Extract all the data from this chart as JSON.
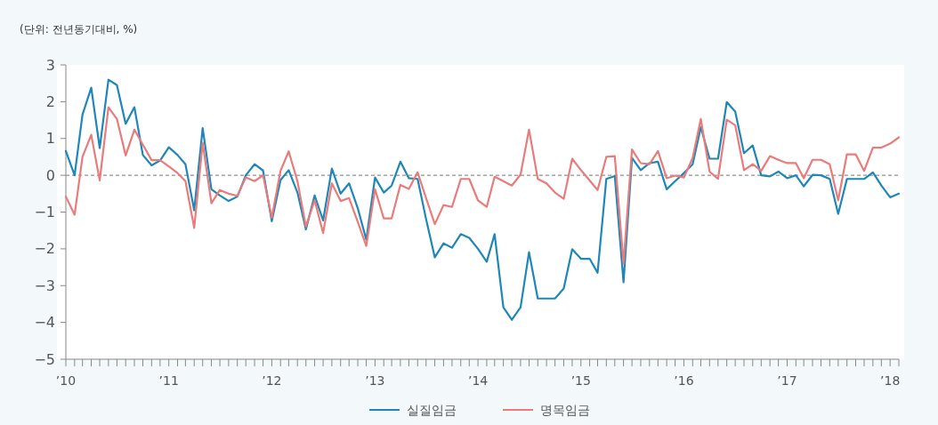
{
  "chart_data": {
    "type": "line",
    "ylabel": "(단위: 전년동기대비, %)",
    "x": [
      "2010-01",
      "2010-02",
      "2010-03",
      "2010-04",
      "2010-05",
      "2010-06",
      "2010-07",
      "2010-08",
      "2010-09",
      "2010-10",
      "2010-11",
      "2010-12",
      "2011-01",
      "2011-02",
      "2011-03",
      "2011-04",
      "2011-05",
      "2011-06",
      "2011-07",
      "2011-08",
      "2011-09",
      "2011-10",
      "2011-11",
      "2011-12",
      "2012-01",
      "2012-02",
      "2012-03",
      "2012-04",
      "2012-05",
      "2012-06",
      "2012-07",
      "2012-08",
      "2012-09",
      "2012-10",
      "2012-11",
      "2012-12",
      "2013-01",
      "2013-02",
      "2013-03",
      "2013-04",
      "2013-05",
      "2013-06",
      "2013-07",
      "2013-08",
      "2013-09",
      "2013-10",
      "2013-11",
      "2013-12",
      "2014-01",
      "2014-02",
      "2014-03",
      "2014-04",
      "2014-05",
      "2014-06",
      "2014-07",
      "2014-08",
      "2014-09",
      "2014-10",
      "2014-11",
      "2014-12",
      "2015-01",
      "2015-02",
      "2015-03",
      "2015-04",
      "2015-05",
      "2015-06",
      "2015-07",
      "2015-08",
      "2015-09",
      "2015-10",
      "2015-11",
      "2015-12",
      "2016-01",
      "2016-02",
      "2016-03",
      "2016-04",
      "2016-05",
      "2016-06",
      "2016-07",
      "2016-08",
      "2016-09",
      "2016-10",
      "2016-11",
      "2016-12",
      "2017-01",
      "2017-02",
      "2017-03",
      "2017-04",
      "2017-05",
      "2017-06",
      "2017-07",
      "2017-08",
      "2017-09",
      "2017-10",
      "2017-11",
      "2017-12",
      "2018-01",
      "2018-02"
    ],
    "series": [
      {
        "name": "실질임금",
        "color": "#1f87b8",
        "values": [
          0.66,
          0,
          1.65,
          2.38,
          0.74,
          2.6,
          2.45,
          1.4,
          1.85,
          0.55,
          0.27,
          0.4,
          0.76,
          0.55,
          0.3,
          -0.95,
          1.28,
          -0.38,
          -0.55,
          -0.7,
          -0.58,
          0,
          0.3,
          0.13,
          -1.25,
          -0.13,
          0.14,
          -0.47,
          -1.47,
          -0.55,
          -1.23,
          0.18,
          -0.5,
          -0.22,
          -0.9,
          -1.75,
          -0.06,
          -0.47,
          -0.28,
          0.37,
          -0.08,
          -0.1,
          -1.19,
          -2.23,
          -1.85,
          -1.97,
          -1.6,
          -1.7,
          -2,
          -2.35,
          -1.6,
          -3.59,
          -3.93,
          -3.59,
          -2.09,
          -3.35,
          -3.35,
          -3.35,
          -3.08,
          -2.01,
          -2.27,
          -2.27,
          -2.65,
          -0.1,
          -0.02,
          -2.91,
          0.47,
          0.14,
          0.33,
          0.37,
          -0.38,
          -0.16,
          0.06,
          0.3,
          1.31,
          0.45,
          0.45,
          1.99,
          1.73,
          0.6,
          0.81,
          0,
          -0.03,
          0.1,
          -0.08,
          0,
          -0.3,
          0.01,
          0,
          -0.1,
          -1.05,
          -0.1,
          -0.1,
          -0.1,
          0.08,
          -0.28,
          -0.6,
          -0.5
        ]
      },
      {
        "name": "명목임금",
        "color": "#e97b7b",
        "values": [
          -0.58,
          -1.07,
          0.5,
          1.1,
          -0.14,
          1.85,
          1.53,
          0.54,
          1.24,
          0.83,
          0.41,
          0.41,
          0.24,
          0.06,
          -0.16,
          -1.43,
          0.88,
          -0.76,
          -0.4,
          -0.5,
          -0.56,
          -0.06,
          -0.16,
          0,
          -1.15,
          0.12,
          0.65,
          -0.16,
          -1.39,
          -0.68,
          -1.57,
          -0.22,
          -0.7,
          -0.62,
          -1.27,
          -1.92,
          -0.38,
          -1.17,
          -1.17,
          -0.26,
          -0.37,
          0.08,
          -0.62,
          -1.33,
          -0.81,
          -0.86,
          -0.1,
          -0.1,
          -0.68,
          -0.86,
          -0.04,
          -0.16,
          -0.28,
          0.02,
          1.24,
          -0.1,
          -0.22,
          -0.47,
          -0.64,
          0.45,
          0.14,
          -0.14,
          -0.4,
          0.5,
          0.52,
          -2.4,
          0.7,
          0.33,
          0.3,
          0.66,
          -0.08,
          -0.01,
          -0.06,
          0.47,
          1.53,
          0.1,
          -0.1,
          1.51,
          1.36,
          0.14,
          0.3,
          0.12,
          0.52,
          0.42,
          0.33,
          0.33,
          -0.08,
          0.42,
          0.42,
          0.3,
          -0.68,
          0.57,
          0.57,
          0.12,
          0.75,
          0.75,
          0.86,
          1.03
        ]
      }
    ],
    "xlim": [
      "2010-01",
      "2018-02"
    ],
    "xticks": [
      {
        "value": "2010-01",
        "label": "’10"
      },
      {
        "value": "2010-02",
        "label": null
      },
      {
        "value": "2010-03",
        "label": null
      },
      {
        "value": "2010-04",
        "label": null
      },
      {
        "value": "2010-05",
        "label": null
      },
      {
        "value": "2010-06",
        "label": null
      },
      {
        "value": "2010-07",
        "label": null
      },
      {
        "value": "2010-08",
        "label": null
      },
      {
        "value": "2010-09",
        "label": null
      },
      {
        "value": "2010-10",
        "label": null
      },
      {
        "value": "2010-11",
        "label": null
      },
      {
        "value": "2010-12",
        "label": null
      },
      {
        "value": "2011-01",
        "label": "’11"
      },
      {
        "value": "2011-02",
        "label": null
      },
      {
        "value": "2011-03",
        "label": null
      },
      {
        "value": "2011-04",
        "label": null
      },
      {
        "value": "2011-05",
        "label": null
      },
      {
        "value": "2011-06",
        "label": null
      },
      {
        "value": "2011-07",
        "label": null
      },
      {
        "value": "2011-08",
        "label": null
      },
      {
        "value": "2011-09",
        "label": null
      },
      {
        "value": "2011-10",
        "label": null
      },
      {
        "value": "2011-11",
        "label": null
      },
      {
        "value": "2011-12",
        "label": null
      },
      {
        "value": "2012-01",
        "label": "’12"
      },
      {
        "value": "2012-02",
        "label": null
      },
      {
        "value": "2012-03",
        "label": null
      },
      {
        "value": "2012-04",
        "label": null
      },
      {
        "value": "2012-05",
        "label": null
      },
      {
        "value": "2012-06",
        "label": null
      },
      {
        "value": "2012-07",
        "label": null
      },
      {
        "value": "2012-08",
        "label": null
      },
      {
        "value": "2012-09",
        "label": null
      },
      {
        "value": "2012-10",
        "label": null
      },
      {
        "value": "2012-11",
        "label": null
      },
      {
        "value": "2012-12",
        "label": null
      },
      {
        "value": "2013-01",
        "label": "’13"
      },
      {
        "value": "2013-02",
        "label": null
      },
      {
        "value": "2013-03",
        "label": null
      },
      {
        "value": "2013-04",
        "label": null
      },
      {
        "value": "2013-05",
        "label": null
      },
      {
        "value": "2013-06",
        "label": null
      },
      {
        "value": "2013-07",
        "label": null
      },
      {
        "value": "2013-08",
        "label": null
      },
      {
        "value": "2013-09",
        "label": null
      },
      {
        "value": "2013-10",
        "label": null
      },
      {
        "value": "2013-11",
        "label": null
      },
      {
        "value": "2013-12",
        "label": null
      },
      {
        "value": "2014-01",
        "label": "’14"
      },
      {
        "value": "2014-02",
        "label": null
      },
      {
        "value": "2014-03",
        "label": null
      },
      {
        "value": "2014-04",
        "label": null
      },
      {
        "value": "2014-05",
        "label": null
      },
      {
        "value": "2014-06",
        "label": null
      },
      {
        "value": "2014-07",
        "label": null
      },
      {
        "value": "2014-08",
        "label": null
      },
      {
        "value": "2014-09",
        "label": null
      },
      {
        "value": "2014-10",
        "label": null
      },
      {
        "value": "2014-11",
        "label": null
      },
      {
        "value": "2014-12",
        "label": null
      },
      {
        "value": "2015-01",
        "label": "’15"
      },
      {
        "value": "2015-02",
        "label": null
      },
      {
        "value": "2015-03",
        "label": null
      },
      {
        "value": "2015-04",
        "label": null
      },
      {
        "value": "2015-05",
        "label": null
      },
      {
        "value": "2015-06",
        "label": null
      },
      {
        "value": "2015-07",
        "label": null
      },
      {
        "value": "2015-08",
        "label": null
      },
      {
        "value": "2015-09",
        "label": null
      },
      {
        "value": "2015-10",
        "label": null
      },
      {
        "value": "2015-11",
        "label": null
      },
      {
        "value": "2015-12",
        "label": null
      },
      {
        "value": "2016-01",
        "label": "’16"
      },
      {
        "value": "2016-02",
        "label": null
      },
      {
        "value": "2016-03",
        "label": null
      },
      {
        "value": "2016-04",
        "label": null
      },
      {
        "value": "2016-05",
        "label": null
      },
      {
        "value": "2016-06",
        "label": null
      },
      {
        "value": "2016-07",
        "label": null
      },
      {
        "value": "2016-08",
        "label": null
      },
      {
        "value": "2016-09",
        "label": null
      },
      {
        "value": "2016-10",
        "label": null
      },
      {
        "value": "2016-11",
        "label": null
      },
      {
        "value": "2016-12",
        "label": null
      },
      {
        "value": "2017-01",
        "label": "’17"
      },
      {
        "value": "2017-02",
        "label": null
      },
      {
        "value": "2017-03",
        "label": null
      },
      {
        "value": "2017-04",
        "label": null
      },
      {
        "value": "2017-05",
        "label": null
      },
      {
        "value": "2017-06",
        "label": null
      },
      {
        "value": "2017-07",
        "label": null
      },
      {
        "value": "2017-08",
        "label": null
      },
      {
        "value": "2017-09",
        "label": null
      },
      {
        "value": "2017-10",
        "label": null
      },
      {
        "value": "2017-11",
        "label": null
      },
      {
        "value": "2017-12",
        "label": null
      },
      {
        "value": "2018-01",
        "label": "’18"
      },
      {
        "value": "2018-02",
        "label": null
      }
    ],
    "ylim": [
      -5,
      3
    ],
    "yticks": [
      -5,
      -4,
      -3,
      -2,
      -1,
      0,
      1,
      2,
      3
    ],
    "ref_lines": [
      {
        "axis": "y",
        "value": 0,
        "color": "#777777",
        "line_style": "dashed"
      }
    ],
    "grid": false,
    "legend": "bottom",
    "marker": "none",
    "line_style": "solid"
  }
}
